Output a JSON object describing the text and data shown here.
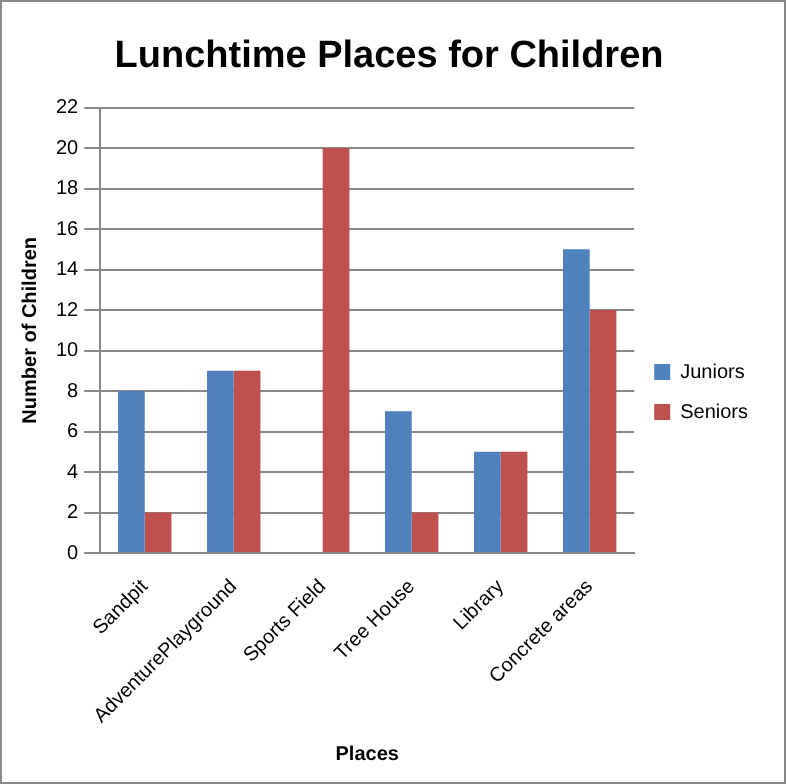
{
  "chart_data": {
    "type": "bar",
    "title": "Lunchtime Places for Children",
    "xlabel": "Places",
    "ylabel": "Number of Children",
    "categories": [
      "Sandpit",
      "AdventurePlayground",
      "Sports Field",
      "Tree House",
      "Library",
      "Concrete areas"
    ],
    "series": [
      {
        "name": "Juniors",
        "color": "#4f81bd",
        "values": [
          8,
          9,
          0,
          7,
          5,
          15
        ]
      },
      {
        "name": "Seniors",
        "color": "#c0504d",
        "values": [
          2,
          9,
          20,
          2,
          5,
          12
        ]
      }
    ],
    "ylim": [
      0,
      22
    ],
    "yticks": [
      0,
      2,
      4,
      6,
      8,
      10,
      12,
      14,
      16,
      18,
      20,
      22
    ],
    "grid": "y",
    "legend": "right"
  }
}
